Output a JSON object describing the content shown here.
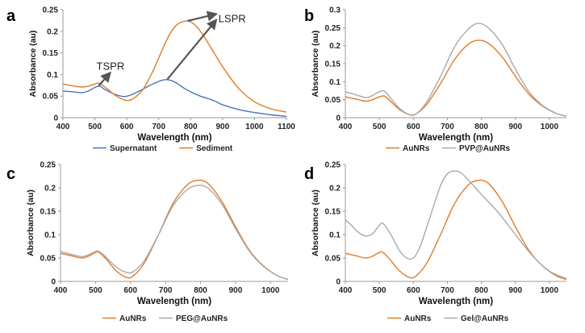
{
  "colors": {
    "orange": "#E07B28",
    "blue": "#4A74B8",
    "gray": "#A9A9A9",
    "axis": "#9a9a9a",
    "arrow": "#555555"
  },
  "chart_data": [
    {
      "panel": "a",
      "type": "line",
      "xlabel": "Wavelength (nm)",
      "ylabel": "Absorbance (au)",
      "xlim": [
        400,
        1100
      ],
      "ylim": [
        0,
        0.25
      ],
      "xticks": [
        400,
        500,
        600,
        700,
        800,
        900,
        1000,
        1100
      ],
      "yticks": [
        "0",
        "0.05",
        "0.1",
        "0.15",
        "0.2",
        "0.25"
      ],
      "legend_position": "bottom",
      "series": [
        {
          "name": "Supernatant",
          "color_key": "blue",
          "x": [
            400,
            430,
            460,
            480,
            500,
            515,
            530,
            560,
            590,
            610,
            640,
            670,
            700,
            720,
            740,
            760,
            780,
            800,
            830,
            860,
            880,
            900,
            950,
            1000,
            1050,
            1100
          ],
          "y": [
            0.062,
            0.06,
            0.058,
            0.062,
            0.07,
            0.073,
            0.066,
            0.055,
            0.049,
            0.052,
            0.062,
            0.074,
            0.084,
            0.088,
            0.086,
            0.078,
            0.068,
            0.06,
            0.05,
            0.043,
            0.037,
            0.03,
            0.019,
            0.012,
            0.007,
            0.003
          ]
        },
        {
          "name": "Sediment",
          "color_key": "orange",
          "x": [
            400,
            430,
            460,
            480,
            500,
            510,
            520,
            540,
            560,
            580,
            600,
            620,
            650,
            680,
            700,
            720,
            740,
            760,
            780,
            790,
            800,
            820,
            840,
            860,
            880,
            900,
            950,
            1000,
            1050,
            1100
          ],
          "y": [
            0.078,
            0.074,
            0.071,
            0.073,
            0.078,
            0.08,
            0.077,
            0.066,
            0.054,
            0.045,
            0.04,
            0.044,
            0.065,
            0.105,
            0.138,
            0.172,
            0.2,
            0.217,
            0.223,
            0.224,
            0.222,
            0.21,
            0.19,
            0.166,
            0.142,
            0.118,
            0.068,
            0.037,
            0.021,
            0.013
          ]
        }
      ],
      "annotations": [
        {
          "text": "TSPR",
          "x": 505,
          "y": 0.111,
          "arrow_from": [
            512,
            0.074
          ],
          "arrow_to": [
            548,
            0.104
          ]
        },
        {
          "text": "LSPR",
          "x": 887,
          "y": 0.221,
          "arrow_from": [
            727,
            0.089
          ],
          "arrow_to": [
            880,
            0.226
          ],
          "arrow2_from": [
            790,
            0.224
          ],
          "arrow2_to": [
            880,
            0.24
          ]
        }
      ]
    },
    {
      "panel": "b",
      "type": "line",
      "xlabel": "Wavelength (nm)",
      "ylabel": "Absorbance (au)",
      "xlim": [
        400,
        1050
      ],
      "ylim": [
        0,
        0.3
      ],
      "xticks": [
        400,
        500,
        600,
        700,
        800,
        900,
        1000
      ],
      "yticks": [
        "0",
        "0.05",
        "0.1",
        "0.15",
        "0.2",
        "0.25",
        "0.3"
      ],
      "legend_position": "bottom",
      "series": [
        {
          "name": "AuNRs",
          "color_key": "orange",
          "x": [
            400,
            430,
            460,
            480,
            500,
            515,
            530,
            560,
            590,
            610,
            640,
            680,
            720,
            760,
            790,
            820,
            860,
            900,
            940,
            980,
            1020,
            1050
          ],
          "y": [
            0.058,
            0.052,
            0.046,
            0.05,
            0.058,
            0.06,
            0.048,
            0.022,
            0.008,
            0.012,
            0.038,
            0.095,
            0.16,
            0.203,
            0.215,
            0.207,
            0.17,
            0.115,
            0.065,
            0.032,
            0.012,
            0.004
          ]
        },
        {
          "name": "PVP@AuNRs",
          "color_key": "gray",
          "x": [
            400,
            430,
            460,
            480,
            500,
            515,
            530,
            560,
            590,
            610,
            640,
            680,
            720,
            760,
            790,
            820,
            860,
            900,
            940,
            980,
            1020,
            1050
          ],
          "y": [
            0.072,
            0.064,
            0.056,
            0.062,
            0.072,
            0.074,
            0.058,
            0.025,
            0.008,
            0.012,
            0.045,
            0.115,
            0.195,
            0.245,
            0.262,
            0.25,
            0.205,
            0.135,
            0.072,
            0.034,
            0.012,
            0.004
          ]
        }
      ]
    },
    {
      "panel": "c",
      "type": "line",
      "xlabel": "Wavelength (nm)",
      "ylabel": "Absorbance (au)",
      "xlim": [
        400,
        1050
      ],
      "ylim": [
        0,
        0.25
      ],
      "xticks": [
        400,
        500,
        600,
        700,
        800,
        900,
        1000
      ],
      "yticks": [
        "0",
        "0.05",
        "0.1",
        "0.15",
        "0.2",
        "0.25"
      ],
      "legend_position": "bottom",
      "series": [
        {
          "name": "AuNRs",
          "color_key": "orange",
          "x": [
            400,
            430,
            460,
            480,
            500,
            510,
            530,
            560,
            590,
            610,
            640,
            680,
            720,
            760,
            790,
            820,
            860,
            900,
            940,
            980,
            1020,
            1050
          ],
          "y": [
            0.06,
            0.055,
            0.05,
            0.054,
            0.062,
            0.062,
            0.048,
            0.022,
            0.008,
            0.013,
            0.04,
            0.1,
            0.165,
            0.205,
            0.216,
            0.21,
            0.172,
            0.117,
            0.066,
            0.033,
            0.012,
            0.004
          ]
        },
        {
          "name": "PEG@AuNRs",
          "color_key": "gray",
          "x": [
            400,
            430,
            460,
            480,
            500,
            510,
            530,
            560,
            590,
            610,
            640,
            680,
            720,
            760,
            790,
            820,
            860,
            900,
            940,
            980,
            1020,
            1050
          ],
          "y": [
            0.064,
            0.058,
            0.053,
            0.057,
            0.064,
            0.064,
            0.052,
            0.03,
            0.019,
            0.022,
            0.045,
            0.1,
            0.16,
            0.195,
            0.205,
            0.2,
            0.166,
            0.113,
            0.064,
            0.032,
            0.012,
            0.004
          ]
        }
      ]
    },
    {
      "panel": "d",
      "type": "line",
      "xlabel": "Wavelength (nm)",
      "ylabel": "Absorbance (au)",
      "xlim": [
        400,
        1050
      ],
      "ylim": [
        0,
        0.25
      ],
      "xticks": [
        400,
        500,
        600,
        700,
        800,
        900,
        1000
      ],
      "yticks": [
        "0",
        "0.05",
        "0.1",
        "0.15",
        "0.2",
        "0.25"
      ],
      "legend_position": "bottom",
      "series": [
        {
          "name": "AuNRs",
          "color_key": "orange",
          "x": [
            400,
            430,
            460,
            480,
            500,
            510,
            530,
            560,
            590,
            610,
            640,
            680,
            720,
            760,
            790,
            820,
            860,
            900,
            940,
            980,
            1020,
            1050
          ],
          "y": [
            0.06,
            0.055,
            0.05,
            0.054,
            0.062,
            0.062,
            0.048,
            0.022,
            0.008,
            0.013,
            0.04,
            0.1,
            0.165,
            0.205,
            0.216,
            0.21,
            0.172,
            0.117,
            0.066,
            0.033,
            0.012,
            0.004
          ]
        },
        {
          "name": "Gel@AuNRs",
          "color_key": "gray",
          "x": [
            400,
            420,
            440,
            460,
            480,
            500,
            510,
            530,
            560,
            580,
            600,
            620,
            650,
            680,
            700,
            720,
            740,
            760,
            800,
            850,
            900,
            950,
            1000,
            1050
          ],
          "y": [
            0.132,
            0.118,
            0.104,
            0.097,
            0.102,
            0.12,
            0.124,
            0.105,
            0.065,
            0.05,
            0.05,
            0.075,
            0.14,
            0.205,
            0.23,
            0.236,
            0.232,
            0.218,
            0.186,
            0.147,
            0.1,
            0.055,
            0.022,
            0.006
          ]
        }
      ]
    }
  ]
}
